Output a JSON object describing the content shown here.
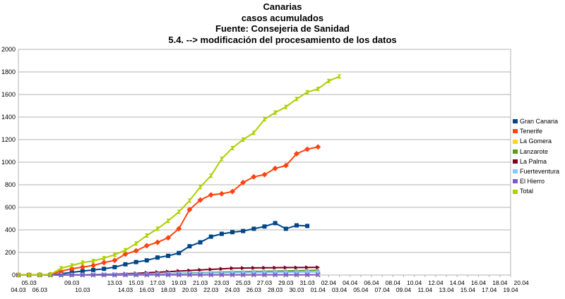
{
  "titles": {
    "line1": "Canarias",
    "line2": "casos acumulados",
    "line3": "Fuente: Consejeria de Sanidad",
    "line4": "5.4. --> modificación del procesamiento de los datos"
  },
  "chart_data": {
    "type": "line",
    "title": "Canarias casos acumulados",
    "ylim": [
      0,
      2000
    ],
    "yticks": [
      0,
      200,
      400,
      600,
      800,
      1000,
      1200,
      1400,
      1600,
      1800,
      2000
    ],
    "grid": true,
    "legend_position": "right",
    "x_top_labels": [
      "05.03",
      "09.03",
      "13.03",
      "15.03",
      "17.03",
      "19.03",
      "21.03",
      "23.03",
      "25.03",
      "27.03",
      "29.03",
      "31.03",
      "02.04",
      "04.04",
      "06.04",
      "08.04",
      "10.04",
      "12.04",
      "14.04",
      "16.04",
      "18.04",
      "20.04"
    ],
    "x_bottom_labels": [
      "04.03",
      "06.03",
      "10.03",
      "14.03",
      "16.03",
      "18.03",
      "20.03",
      "22.03",
      "24.03",
      "26.03",
      "28.03",
      "30.03",
      "01.04",
      "03.04",
      "05.04",
      "07.04",
      "09.04",
      "11.04",
      "13.04",
      "15.04",
      "17.04",
      "19.04"
    ],
    "series": [
      {
        "name": "Gran Canaria",
        "color": "#004586",
        "values": [
          0,
          0,
          0,
          0,
          12,
          24,
          35,
          45,
          55,
          70,
          95,
          115,
          130,
          155,
          170,
          195,
          255,
          290,
          340,
          365,
          380,
          390,
          410,
          430,
          460,
          410,
          440,
          435
        ]
      },
      {
        "name": "Tenerife",
        "color": "#ff420e",
        "values": [
          1,
          1,
          2,
          5,
          35,
          55,
          70,
          85,
          110,
          130,
          185,
          215,
          260,
          290,
          330,
          410,
          580,
          665,
          710,
          720,
          740,
          820,
          870,
          890,
          945,
          970,
          1075,
          1115,
          1135
        ]
      },
      {
        "name": "La Gomera",
        "color": "#ffd320",
        "values": [
          0,
          0,
          0,
          0,
          0,
          0,
          0,
          0,
          0,
          0,
          0,
          0,
          1,
          1,
          1,
          1,
          1,
          1,
          2,
          2,
          2,
          2,
          2,
          3,
          3,
          3,
          3,
          3,
          3
        ]
      },
      {
        "name": "Lanzarote",
        "color": "#579d1c",
        "values": [
          0,
          0,
          0,
          0,
          1,
          2,
          3,
          4,
          5,
          5,
          5,
          6,
          8,
          10,
          12,
          15,
          18,
          20,
          22,
          25,
          28,
          30,
          32,
          33,
          35,
          36,
          38,
          40,
          42
        ]
      },
      {
        "name": "La Palma",
        "color": "#7e0021",
        "values": [
          0,
          0,
          0,
          0,
          1,
          2,
          3,
          4,
          6,
          8,
          12,
          15,
          20,
          25,
          30,
          35,
          40,
          45,
          50,
          55,
          60,
          62,
          63,
          64,
          65,
          66,
          66,
          67,
          68
        ]
      },
      {
        "name": "Fuerteventura",
        "color": "#83caff",
        "values": [
          0,
          0,
          0,
          0,
          1,
          2,
          3,
          3,
          4,
          5,
          6,
          7,
          8,
          10,
          12,
          14,
          15,
          16,
          18,
          19,
          20,
          21,
          22,
          23,
          24,
          25,
          25,
          26,
          26
        ]
      },
      {
        "name": "El Hierro",
        "color": "#7e58c9",
        "values": [
          0,
          0,
          0,
          0,
          0,
          0,
          0,
          0,
          0,
          0,
          1,
          1,
          1,
          1,
          1,
          1,
          2,
          2,
          2,
          2,
          2,
          2,
          2,
          2,
          2,
          2,
          2,
          2,
          2
        ]
      },
      {
        "name": "Total",
        "color": "#aecf00",
        "values": [
          1,
          1,
          2,
          5,
          60,
          85,
          110,
          125,
          150,
          180,
          220,
          280,
          350,
          410,
          480,
          560,
          660,
          780,
          880,
          1030,
          1125,
          1200,
          1260,
          1380,
          1440,
          1490,
          1560,
          1620,
          1650,
          1720,
          1760
        ]
      }
    ]
  }
}
